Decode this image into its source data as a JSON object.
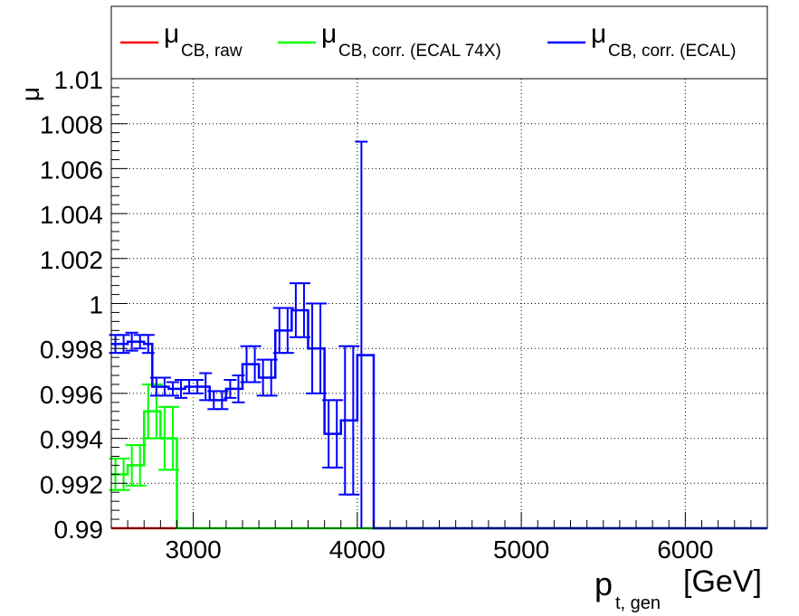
{
  "chart_data": {
    "type": "line",
    "title": "",
    "ylabel": "μ",
    "xlabel": {
      "main": "p",
      "sub": "t, gen",
      "unit": "[GeV]"
    },
    "xlim": [
      2500,
      6500
    ],
    "ylim": [
      0.99,
      1.01
    ],
    "xticks": [
      3000,
      4000,
      5000,
      6000
    ],
    "xtick_labels": [
      "3000",
      "4000",
      "5000",
      "6000"
    ],
    "yticks": [
      0.99,
      0.992,
      0.994,
      0.996,
      0.998,
      1.0,
      1.002,
      1.004,
      1.006,
      1.008,
      1.01
    ],
    "ytick_labels": [
      "0.99",
      "0.992",
      "0.994",
      "0.996",
      "0.998",
      "1",
      "1.002",
      "1.004",
      "1.006",
      "1.008",
      "1.01"
    ],
    "grid": true,
    "legend_position": "top",
    "legend": [
      {
        "symbol": "μ",
        "sub": "CB, raw",
        "color": "#ff0000"
      },
      {
        "symbol": "μ",
        "sub": "CB, corr. (ECAL 74X)",
        "color": "#00ff00"
      },
      {
        "symbol": "μ",
        "sub": "CB, corr. (ECAL)",
        "color": "#0000ff"
      }
    ],
    "series": [
      {
        "name": "μCB, raw",
        "color": "#ff0000",
        "bins": [
          [
            2500,
            2900,
            0.99,
            0
          ]
        ]
      },
      {
        "name": "μCB, corr. (ECAL 74X)",
        "color": "#00ff00",
        "bins": [
          [
            2500,
            2550,
            0.9924,
            0.0007
          ],
          [
            2550,
            2600,
            0.9924,
            0.0007
          ],
          [
            2600,
            2650,
            0.9928,
            0.0009
          ],
          [
            2650,
            2700,
            0.9928,
            0.0009
          ],
          [
            2700,
            2750,
            0.9952,
            0.0012
          ],
          [
            2750,
            2800,
            0.9952,
            0.0012
          ],
          [
            2800,
            2850,
            0.994,
            0.0014
          ],
          [
            2850,
            2900,
            0.994,
            0.0014
          ],
          [
            2900,
            6500,
            0.99,
            0
          ]
        ]
      },
      {
        "name": "μCB, corr. (ECAL)",
        "color": "#0000ff",
        "bins": [
          [
            2500,
            2550,
            0.9982,
            0.0004
          ],
          [
            2550,
            2600,
            0.9982,
            0.0004
          ],
          [
            2600,
            2650,
            0.9983,
            0.0004
          ],
          [
            2650,
            2700,
            0.9983,
            0.0003
          ],
          [
            2700,
            2750,
            0.9982,
            0.0004
          ],
          [
            2750,
            2800,
            0.9963,
            0.0004
          ],
          [
            2800,
            2850,
            0.9963,
            0.0004
          ],
          [
            2850,
            2900,
            0.9962,
            0.0003
          ],
          [
            2900,
            2950,
            0.9962,
            0.0004
          ],
          [
            2950,
            3000,
            0.9963,
            0.0003
          ],
          [
            3000,
            3050,
            0.9963,
            0.0003
          ],
          [
            3050,
            3100,
            0.9963,
            0.0006
          ],
          [
            3100,
            3150,
            0.9957,
            0.0004
          ],
          [
            3150,
            3200,
            0.9957,
            0.0004
          ],
          [
            3200,
            3250,
            0.9962,
            0.0004
          ],
          [
            3250,
            3300,
            0.9962,
            0.0006
          ],
          [
            3300,
            3350,
            0.9973,
            0.0008
          ],
          [
            3350,
            3400,
            0.9973,
            0.0008
          ],
          [
            3400,
            3450,
            0.9967,
            0.0008
          ],
          [
            3450,
            3500,
            0.9967,
            0.0008
          ],
          [
            3500,
            3550,
            0.9988,
            0.001
          ],
          [
            3550,
            3600,
            0.9988,
            0.001
          ],
          [
            3600,
            3650,
            0.9997,
            0.0012
          ],
          [
            3650,
            3700,
            0.9997,
            0.0012
          ],
          [
            3700,
            3750,
            0.998,
            0.002
          ],
          [
            3750,
            3800,
            0.998,
            0.002
          ],
          [
            3800,
            3850,
            0.9942,
            0.0015
          ],
          [
            3850,
            3900,
            0.9942,
            0.0015
          ],
          [
            3900,
            3950,
            0.9948,
            0.0033
          ],
          [
            3950,
            4000,
            0.9948,
            0.0033
          ],
          [
            4000,
            4050,
            0.9977,
            0.0095
          ],
          [
            4050,
            4100,
            0.9977,
            0
          ],
          [
            4100,
            6500,
            0.99,
            0
          ]
        ]
      }
    ]
  }
}
